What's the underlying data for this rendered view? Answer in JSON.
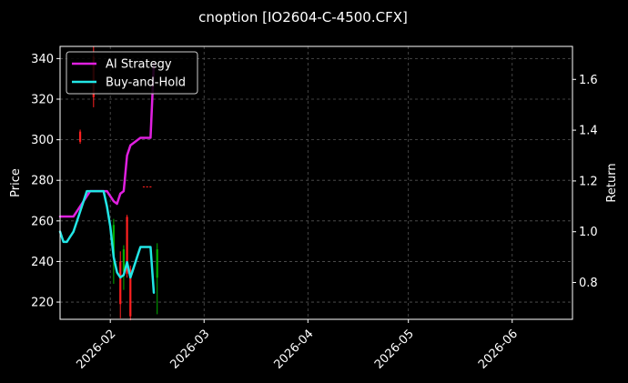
{
  "chart_data": {
    "type": "line",
    "title": "cnoption [IO2604-C-4500.CFX]",
    "xlabel": "",
    "ylabel": "Price",
    "y2label": "Return",
    "xlim": [
      "2026-01-17",
      "2026-06-19"
    ],
    "ylim": [
      211.5,
      346
    ],
    "y2lim": [
      0.655,
      1.73
    ],
    "x_ticks": [
      "2026-02",
      "2026-03",
      "2026-04",
      "2026-05",
      "2026-06"
    ],
    "y_ticks": [
      220,
      240,
      260,
      280,
      300,
      320,
      340
    ],
    "y2_ticks": [
      0.8,
      1.0,
      1.2,
      1.4,
      1.6
    ],
    "grid": true,
    "legend": "top-left",
    "series": [
      {
        "name": "AI Strategy",
        "axis": "right",
        "color": "#e020e0",
        "x": [
          "2026-01-17",
          "2026-01-18",
          "2026-01-20",
          "2026-01-21",
          "2026-01-22",
          "2026-01-23",
          "2026-01-24",
          "2026-01-25",
          "2026-01-26",
          "2026-01-27",
          "2026-01-28",
          "2026-01-29",
          "2026-01-30",
          "2026-01-31",
          "2026-02-01",
          "2026-02-02",
          "2026-02-03",
          "2026-02-04",
          "2026-02-05",
          "2026-02-06",
          "2026-02-07",
          "2026-02-08",
          "2026-02-09",
          "2026-02-10",
          "2026-02-11",
          "2026-02-12",
          "2026-02-13",
          "2026-02-14"
        ],
        "y": [
          1.06,
          1.06,
          1.06,
          1.06,
          1.08,
          1.1,
          1.12,
          1.14,
          1.16,
          1.16,
          1.16,
          1.16,
          1.16,
          1.16,
          1.14,
          1.12,
          1.11,
          1.15,
          1.16,
          1.3,
          1.34,
          1.35,
          1.36,
          1.37,
          1.37,
          1.37,
          1.37,
          1.66
        ]
      },
      {
        "name": "Buy-and-Hold",
        "axis": "right",
        "color": "#22e6e6",
        "x": [
          "2026-01-17",
          "2026-01-18",
          "2026-01-19",
          "2026-01-20",
          "2026-01-21",
          "2026-01-22",
          "2026-01-23",
          "2026-01-24",
          "2026-01-25",
          "2026-01-26",
          "2026-01-27",
          "2026-01-28",
          "2026-01-29",
          "2026-01-30",
          "2026-01-31",
          "2026-02-01",
          "2026-02-02",
          "2026-02-03",
          "2026-02-04",
          "2026-02-05",
          "2026-02-06",
          "2026-02-07",
          "2026-02-08",
          "2026-02-09",
          "2026-02-10",
          "2026-02-11",
          "2026-02-12",
          "2026-02-13",
          "2026-02-14"
        ],
        "y": [
          1.0,
          0.96,
          0.96,
          0.98,
          1.0,
          1.04,
          1.08,
          1.12,
          1.16,
          1.16,
          1.16,
          1.16,
          1.16,
          1.16,
          1.1,
          1.02,
          0.9,
          0.84,
          0.82,
          0.83,
          0.88,
          0.82,
          0.86,
          0.9,
          0.94,
          0.94,
          0.94,
          0.94,
          0.76
        ]
      }
    ],
    "candles": {
      "axis": "left",
      "up_color": "#00b000",
      "down_color": "#ff2020",
      "items": [
        {
          "x": "2026-01-23",
          "open": 304,
          "high": 305,
          "low": 298,
          "close": 299,
          "dir": "down"
        },
        {
          "x": "2026-01-27",
          "open": 341,
          "high": 346,
          "low": 316,
          "close": 321,
          "dir": "down"
        },
        {
          "x": "2026-02-02",
          "open": 243,
          "high": 261,
          "low": 229,
          "close": 258,
          "dir": "up"
        },
        {
          "x": "2026-02-04",
          "open": 240,
          "high": 245,
          "low": 212,
          "close": 219,
          "dir": "down"
        },
        {
          "x": "2026-02-05",
          "open": 235,
          "high": 248,
          "low": 226,
          "close": 246,
          "dir": "up"
        },
        {
          "x": "2026-02-06",
          "open": 262,
          "high": 263,
          "low": 232,
          "close": 234,
          "dir": "down"
        },
        {
          "x": "2026-02-07",
          "open": 236,
          "high": 238,
          "low": 211,
          "close": 213,
          "dir": "down"
        },
        {
          "x": "2026-02-11",
          "open": 277,
          "high": 277,
          "low": 276.5,
          "close": 276.8,
          "dir": "down"
        },
        {
          "x": "2026-02-12",
          "open": 277,
          "high": 277,
          "low": 276.5,
          "close": 276.8,
          "dir": "down"
        },
        {
          "x": "2026-02-13",
          "open": 277,
          "high": 277,
          "low": 276.5,
          "close": 276.8,
          "dir": "down"
        },
        {
          "x": "2026-02-15",
          "open": 232,
          "high": 249,
          "low": 214,
          "close": 246,
          "dir": "up"
        }
      ]
    }
  }
}
